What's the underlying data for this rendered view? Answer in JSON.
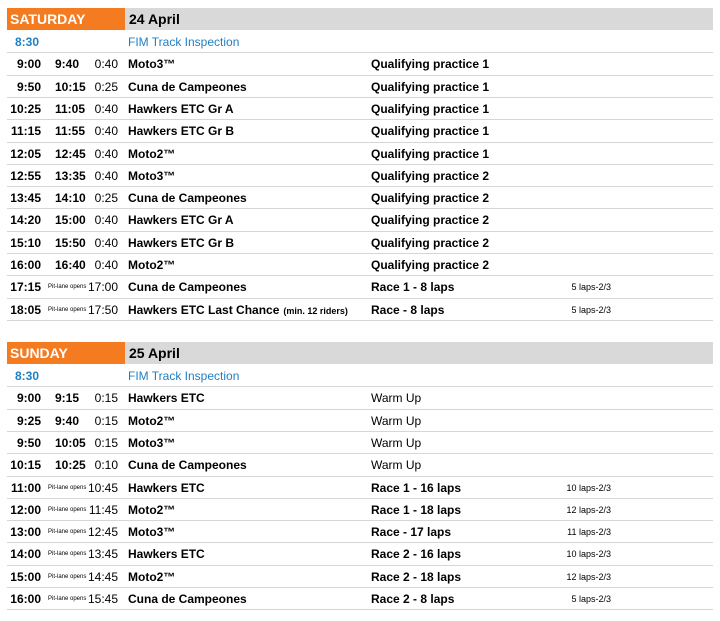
{
  "sections": [
    {
      "day": "SATURDAY",
      "date": "24 April",
      "rows": [
        {
          "start": "8:30",
          "name": "FIM Track Inspection"
        },
        {
          "start": "9:00",
          "end": "9:40",
          "duration": "0:40",
          "name": "Moto3™",
          "session": "Qualifying practice 1"
        },
        {
          "start": "9:50",
          "end": "10:15",
          "duration": "0:25",
          "name": "Cuna de Campeones",
          "session": "Qualifying practice 1"
        },
        {
          "start": "10:25",
          "end": "11:05",
          "duration": "0:40",
          "name": "Hawkers ETC Gr A",
          "session": "Qualifying practice 1"
        },
        {
          "start": "11:15",
          "end": "11:55",
          "duration": "0:40",
          "name": "Hawkers ETC Gr B",
          "session": "Qualifying practice 1"
        },
        {
          "start": "12:05",
          "end": "12:45",
          "duration": "0:40",
          "name": "Moto2™",
          "session": "Qualifying practice 1"
        },
        {
          "start": "12:55",
          "end": "13:35",
          "duration": "0:40",
          "name": "Moto3™",
          "session": "Qualifying practice 2"
        },
        {
          "start": "13:45",
          "end": "14:10",
          "duration": "0:25",
          "name": "Cuna de Campeones",
          "session": "Qualifying practice 2"
        },
        {
          "start": "14:20",
          "end": "15:00",
          "duration": "0:40",
          "name": "Hawkers ETC Gr A",
          "session": "Qualifying practice 2"
        },
        {
          "start": "15:10",
          "end": "15:50",
          "duration": "0:40",
          "name": "Hawkers ETC Gr B",
          "session": "Qualifying practice 2"
        },
        {
          "start": "16:00",
          "end": "16:40",
          "duration": "0:40",
          "name": "Moto2™",
          "session": "Qualifying practice 2"
        },
        {
          "start": "17:15",
          "pit": "Pit-lane opens",
          "pit_time": "17:00",
          "name": "Cuna de Campeones",
          "session": "Race 1 - 8 laps",
          "laps": "5 laps-2/3"
        },
        {
          "start": "18:05",
          "pit": "Pit-lane opens",
          "pit_time": "17:50",
          "name": "Hawkers ETC Last Chance",
          "note": "(min. 12 riders)",
          "session": "Race - 8 laps",
          "laps": "5 laps-2/3"
        }
      ]
    },
    {
      "day": "SUNDAY",
      "date": "25 April",
      "rows": [
        {
          "start": "8:30",
          "name": "FIM Track Inspection"
        },
        {
          "start": "9:00",
          "end": "9:15",
          "duration": "0:15",
          "name": "Hawkers ETC",
          "session": "Warm Up",
          "session_weight": "normal"
        },
        {
          "start": "9:25",
          "end": "9:40",
          "duration": "0:15",
          "name": "Moto2™",
          "session": "Warm Up",
          "session_weight": "normal"
        },
        {
          "start": "9:50",
          "end": "10:05",
          "duration": "0:15",
          "name": "Moto3™",
          "session": "Warm Up",
          "session_weight": "normal"
        },
        {
          "start": "10:15",
          "end": "10:25",
          "duration": "0:10",
          "name": "Cuna de Campeones",
          "session": "Warm Up",
          "session_weight": "normal"
        },
        {
          "start": "11:00",
          "pit": "Pit-lane opens",
          "pit_time": "10:45",
          "name": "Hawkers ETC",
          "session": "Race 1 - 16 laps",
          "laps": "10 laps-2/3"
        },
        {
          "start": "12:00",
          "pit": "Pit-lane opens",
          "pit_time": "11:45",
          "name": "Moto2™",
          "session": "Race 1 - 18 laps",
          "laps": "12 laps-2/3"
        },
        {
          "start": "13:00",
          "pit": "Pit-lane opens",
          "pit_time": "12:45",
          "name": "Moto3™",
          "session": "Race - 17 laps",
          "laps": "11 laps-2/3"
        },
        {
          "start": "14:00",
          "pit": "Pit-lane opens",
          "pit_time": "13:45",
          "name": "Hawkers ETC",
          "session": "Race 2 - 16 laps",
          "laps": "10 laps-2/3"
        },
        {
          "start": "15:00",
          "pit": "Pit-lane opens",
          "pit_time": "14:45",
          "name": "Moto2™",
          "session": "Race 2 - 18 laps",
          "laps": "12 laps-2/3"
        },
        {
          "start": "16:00",
          "pit": "Pit-lane opens",
          "pit_time": "15:45",
          "name": "Cuna de Campeones",
          "session": "Race 2 - 8 laps",
          "laps": "5 laps-2/3"
        }
      ]
    }
  ]
}
